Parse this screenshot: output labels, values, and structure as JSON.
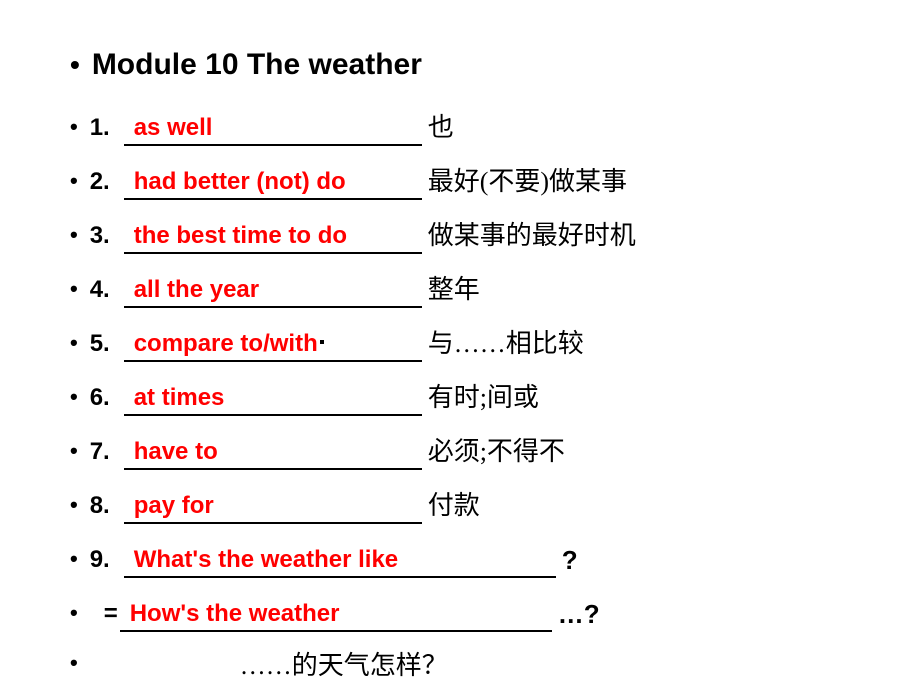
{
  "title": "Module 10 The weather",
  "items": [
    {
      "num": "1.",
      "answer": "as well",
      "meaning": "也",
      "blank_width": 298
    },
    {
      "num": "2.",
      "answer": "had better (not) do",
      "meaning": "最好(不要)做某事",
      "blank_width": 298
    },
    {
      "num": "3.",
      "answer": "the best time to do",
      "meaning": "做某事的最好时机",
      "blank_width": 298
    },
    {
      "num": "4.",
      "answer": "all the year",
      "meaning": "整年",
      "blank_width": 298
    },
    {
      "num": "5.",
      "answer": "compare to/with",
      "meaning": "与……相比较",
      "blank_width": 298
    },
    {
      "num": "6.",
      "answer": "at times",
      "meaning": "有时;间或",
      "blank_width": 298
    },
    {
      "num": "7.",
      "answer": "have to",
      "meaning": "必须;不得不",
      "blank_width": 298
    },
    {
      "num": "8.",
      "answer": "pay for",
      "meaning": "付款",
      "blank_width": 298
    }
  ],
  "q9": {
    "num": "9.",
    "answer1": "What's the weather like",
    "answer2": "How's the weather",
    "blank_width1": 432,
    "blank_width2": 432,
    "trail1": "?",
    "trail2": "…?"
  },
  "last_meaning": "……的天气怎样？",
  "colors": {
    "answer": "#ff0000",
    "text": "#000000",
    "bg": "#ffffff"
  }
}
